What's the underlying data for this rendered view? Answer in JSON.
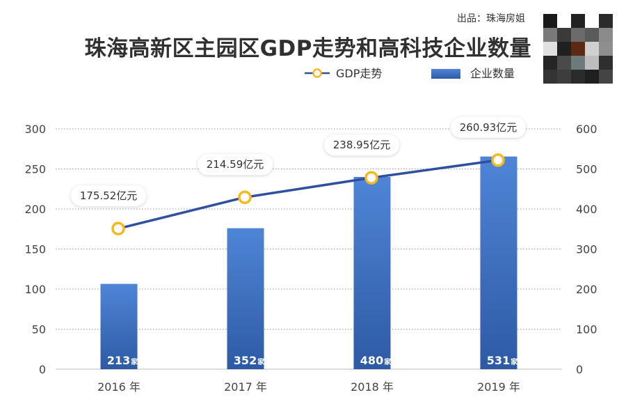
{
  "header": {
    "source": "出品：珠海房姐",
    "title": "珠海高新区主园区GDP走势和高科技企业数量"
  },
  "qr_mosaic_colors": [
    "#1a1a1a",
    "#ffffff",
    "#222222",
    "#ffffff",
    "#2a2a2a",
    "#7a7a7a",
    "#3a3a3a",
    "#6b6b6b",
    "#5a5a5a",
    "#8a8a8a",
    "#e0e0e0",
    "#202020",
    "#5c2a14",
    "#d0d0d0",
    "#8e8e8e",
    "#252525",
    "#4a4a4a",
    "#6e7a7a",
    "#bdbdbd",
    "#2e2e2e",
    "#333333",
    "#3d3d3d",
    "#2b2b2b",
    "#1f1f1f",
    "#444444"
  ],
  "chart_data": {
    "type": "bar",
    "categories": [
      "2016 年",
      "2017 年",
      "2018 年",
      "2019 年"
    ],
    "series": [
      {
        "name": "企业数量",
        "kind": "bar",
        "axis": "right",
        "values": [
          213,
          352,
          480,
          531
        ],
        "labels": [
          "213",
          "352",
          "480",
          "531"
        ],
        "label_unit": "家",
        "color_top": "#4f85d6",
        "color_bottom": "#2d5aa5"
      },
      {
        "name": "GDP走势",
        "kind": "line",
        "axis": "left",
        "values": [
          175.52,
          214.59,
          238.95,
          260.93
        ],
        "labels": [
          "175.52亿元",
          "214.59亿元",
          "238.95亿元",
          "260.93亿元"
        ],
        "line_color": "#2f4fa0",
        "marker_color": "#f6b81a"
      }
    ],
    "y_left": {
      "ticks": [
        "0",
        "50",
        "100",
        "150",
        "200",
        "250",
        "300"
      ],
      "range": [
        0,
        300
      ]
    },
    "y_right": {
      "ticks": [
        "0",
        "100",
        "200",
        "300",
        "400",
        "500",
        "600"
      ],
      "range": [
        0,
        600
      ]
    },
    "grid": "dotted horizontal",
    "legend_position": "top-right"
  }
}
